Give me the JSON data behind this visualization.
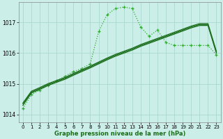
{
  "background_color": "#cceee8",
  "grid_color": "#aad8d0",
  "line_color_dark": "#1a6e1a",
  "line_color_light": "#2eaa2e",
  "xlabel": "Graphe pression niveau de la mer (hPa)",
  "ylim": [
    1013.75,
    1017.65
  ],
  "xlim": [
    -0.5,
    23.5
  ],
  "yticks": [
    1014,
    1015,
    1016,
    1017
  ],
  "xticks": [
    0,
    1,
    2,
    3,
    4,
    5,
    6,
    7,
    8,
    9,
    10,
    11,
    12,
    13,
    14,
    15,
    16,
    17,
    18,
    19,
    20,
    21,
    22,
    23
  ],
  "series1_x": [
    0,
    1,
    2,
    3,
    4,
    5,
    6,
    7,
    8,
    9,
    10,
    11,
    12,
    13,
    14,
    15,
    16,
    17,
    18,
    19,
    20,
    21,
    22,
    23
  ],
  "series1_y": [
    1014.2,
    1014.65,
    1014.8,
    1014.95,
    1015.1,
    1015.25,
    1015.4,
    1015.5,
    1015.65,
    1016.7,
    1017.25,
    1017.45,
    1017.5,
    1017.45,
    1016.85,
    1016.55,
    1016.75,
    1016.35,
    1016.25,
    1016.25,
    1016.25,
    1016.25,
    1016.25,
    1015.95
  ],
  "series2_x": [
    0,
    1,
    2,
    3,
    4,
    5,
    6,
    7,
    8,
    9,
    10,
    11,
    12,
    13,
    14,
    15,
    16,
    17,
    18,
    19,
    20,
    21,
    22,
    23
  ],
  "series2_y": [
    1014.3,
    1014.7,
    1014.82,
    1014.95,
    1015.05,
    1015.15,
    1015.28,
    1015.4,
    1015.52,
    1015.65,
    1015.78,
    1015.9,
    1016.0,
    1016.1,
    1016.22,
    1016.32,
    1016.42,
    1016.52,
    1016.62,
    1016.72,
    1016.82,
    1016.9,
    1016.9,
    1016.0
  ],
  "series3_x": [
    0,
    1,
    2,
    3,
    4,
    5,
    6,
    7,
    8,
    9,
    10,
    11,
    12,
    13,
    14,
    15,
    16,
    17,
    18,
    19,
    20,
    21,
    22,
    23
  ],
  "series3_y": [
    1014.35,
    1014.73,
    1014.85,
    1014.98,
    1015.08,
    1015.18,
    1015.31,
    1015.43,
    1015.55,
    1015.68,
    1015.81,
    1015.93,
    1016.03,
    1016.13,
    1016.25,
    1016.35,
    1016.45,
    1016.55,
    1016.65,
    1016.75,
    1016.85,
    1016.93,
    1016.93,
    1016.03
  ],
  "series4_x": [
    0,
    1,
    2,
    3,
    4,
    5,
    6,
    7,
    8,
    9,
    10,
    11,
    12,
    13,
    14,
    15,
    16,
    17,
    18,
    19,
    20,
    21,
    22,
    23
  ],
  "series4_y": [
    1014.38,
    1014.76,
    1014.88,
    1015.01,
    1015.11,
    1015.21,
    1015.34,
    1015.46,
    1015.58,
    1015.71,
    1015.84,
    1015.96,
    1016.06,
    1016.16,
    1016.28,
    1016.38,
    1016.48,
    1016.58,
    1016.68,
    1016.78,
    1016.88,
    1016.96,
    1016.96,
    1016.06
  ]
}
